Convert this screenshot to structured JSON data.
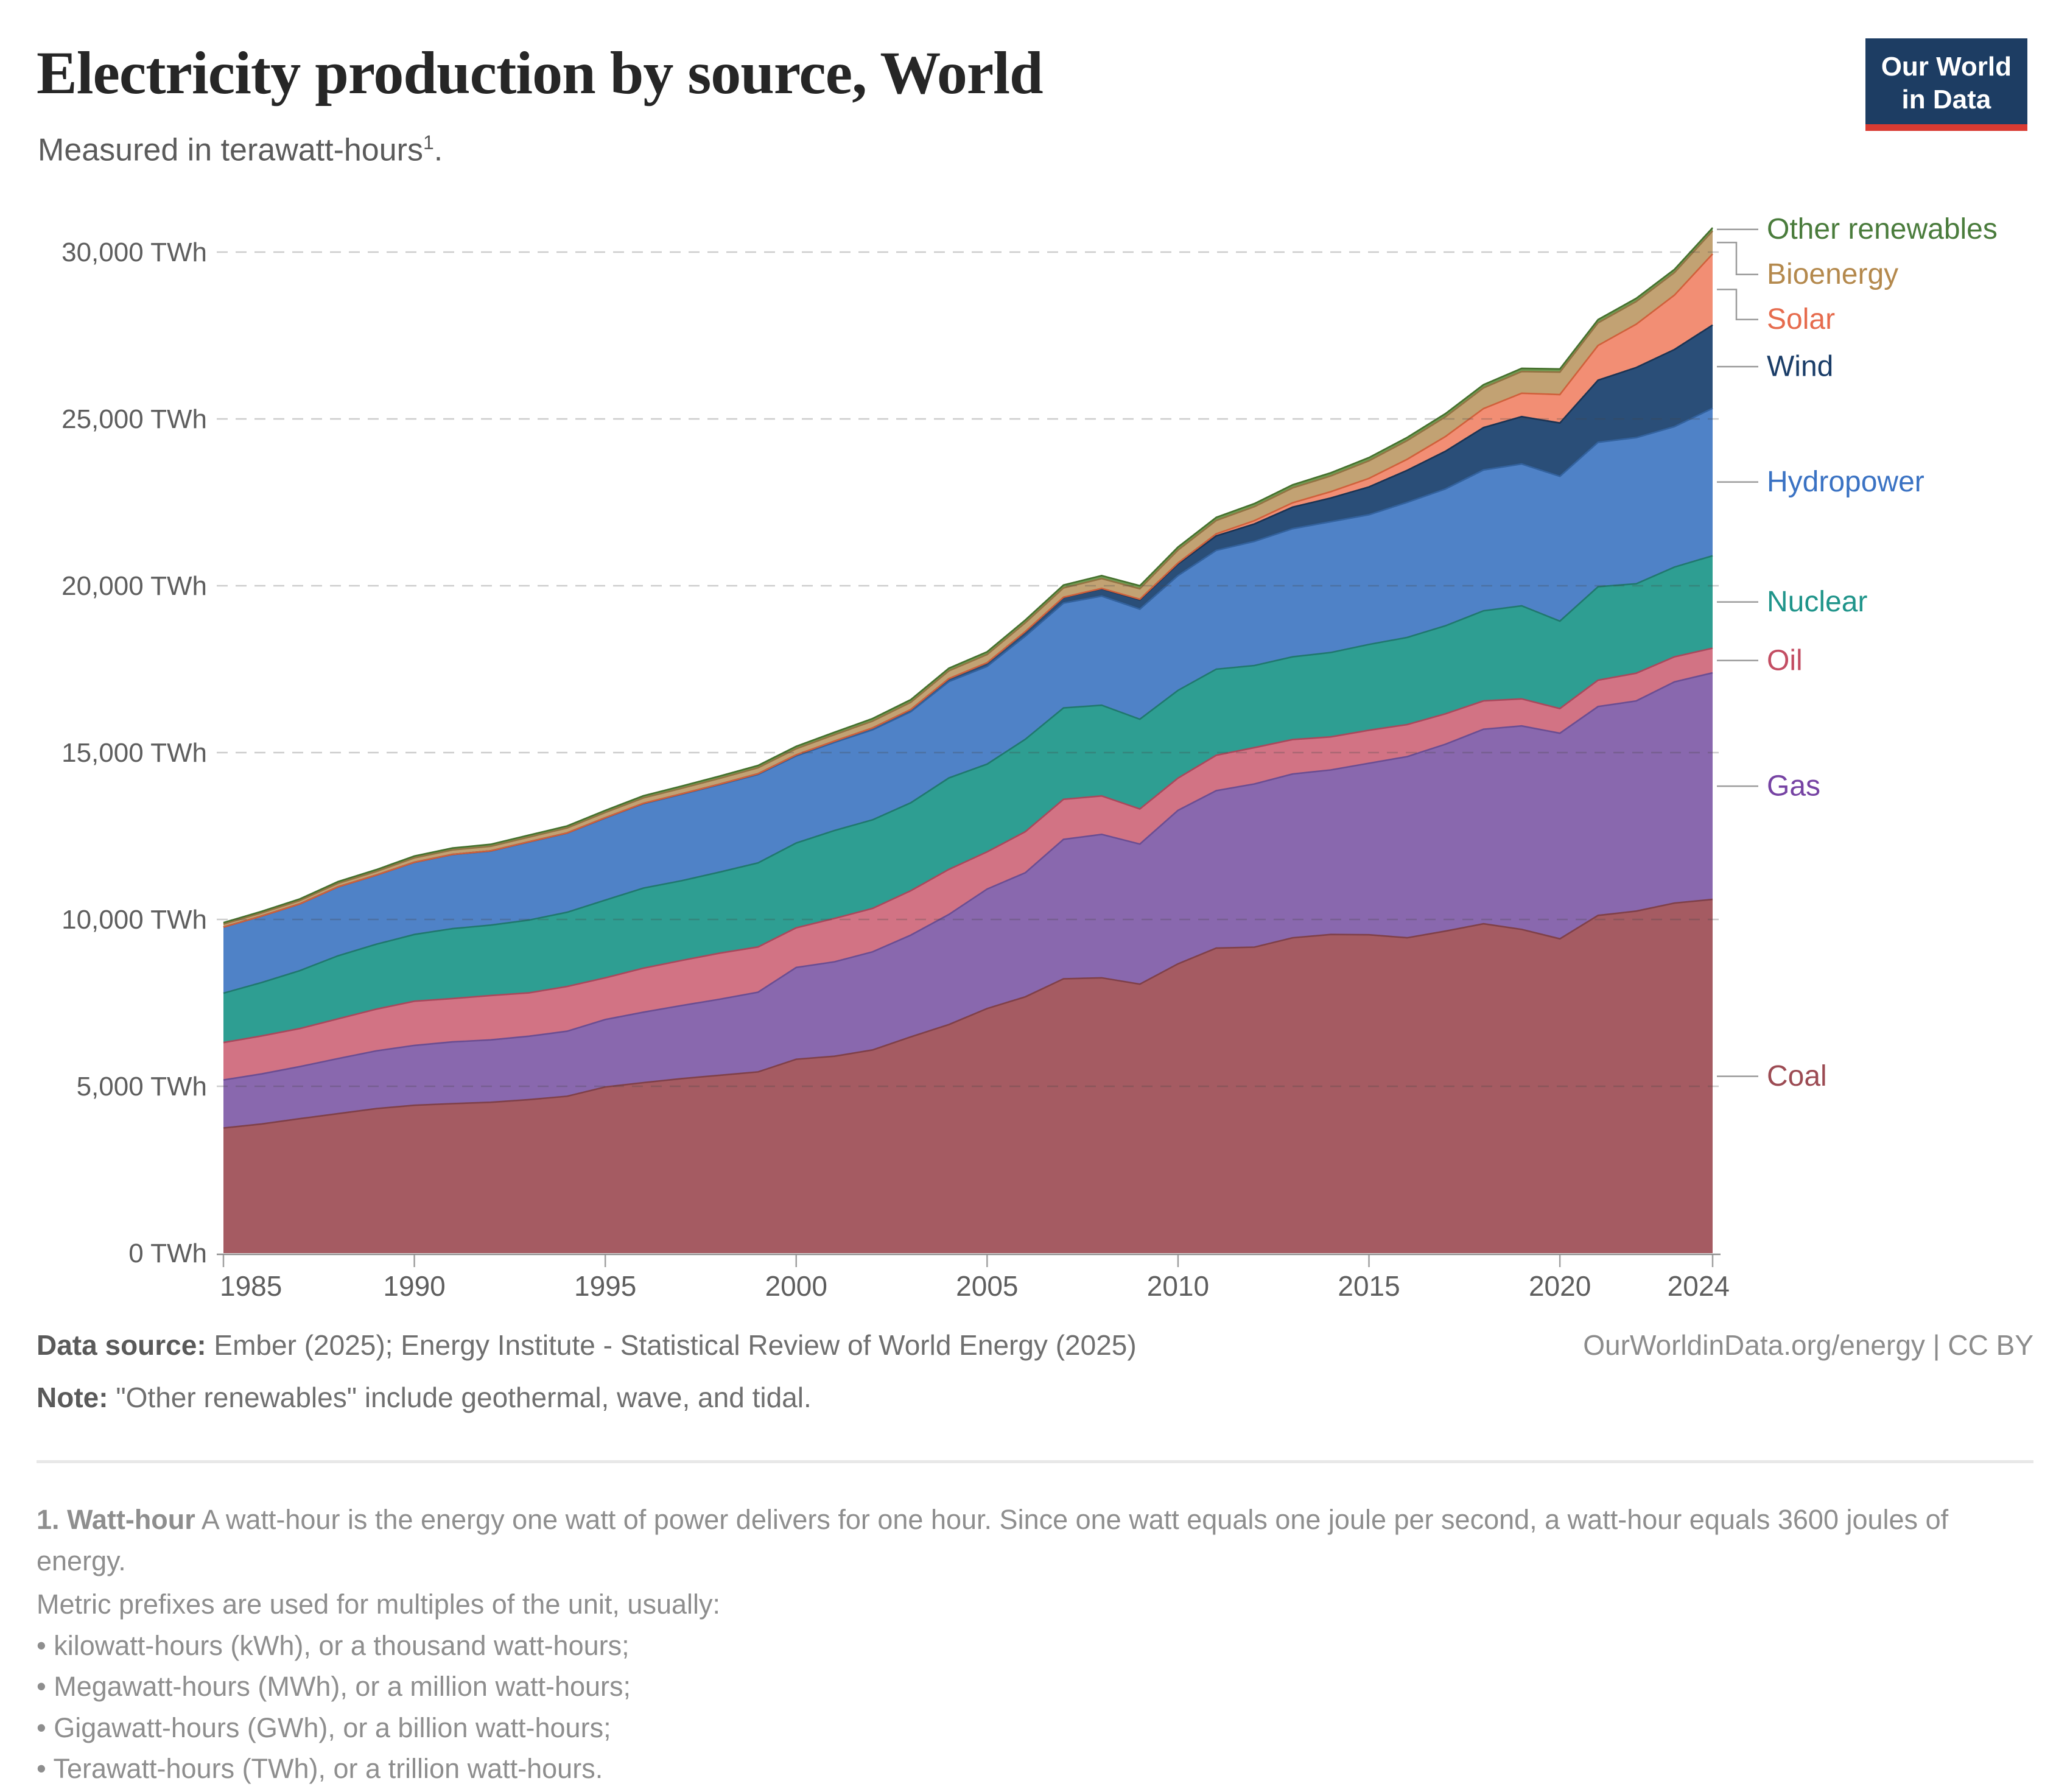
{
  "header": {
    "title": "Electricity production by source, World",
    "subtitle_pre": "Measured in terawatt-hours",
    "subtitle_sup": "1",
    "subtitle_post": ".",
    "logo": {
      "line1": "Our World",
      "line2": "in Data"
    }
  },
  "chart_data": {
    "type": "area",
    "stacked": true,
    "title": "Electricity production by source, World",
    "unit": "TWh",
    "xlabel": "",
    "ylabel": "",
    "ylim": [
      0,
      30000
    ],
    "grid": "dashed",
    "legend_position": "right",
    "x": [
      1985,
      1986,
      1987,
      1988,
      1989,
      1990,
      1991,
      1992,
      1993,
      1994,
      1995,
      1996,
      1997,
      1998,
      1999,
      2000,
      2001,
      2002,
      2003,
      2004,
      2005,
      2006,
      2007,
      2008,
      2009,
      2010,
      2011,
      2012,
      2013,
      2014,
      2015,
      2016,
      2017,
      2018,
      2019,
      2020,
      2021,
      2022,
      2023,
      2024
    ],
    "y_ticks": [
      {
        "value": 0,
        "label": "0 TWh"
      },
      {
        "value": 5000,
        "label": "5,000 TWh"
      },
      {
        "value": 10000,
        "label": "10,000 TWh"
      },
      {
        "value": 15000,
        "label": "15,000 TWh"
      },
      {
        "value": 20000,
        "label": "20,000 TWh"
      },
      {
        "value": 25000,
        "label": "25,000 TWh"
      },
      {
        "value": 30000,
        "label": "30,000 TWh"
      }
    ],
    "x_ticks": [
      {
        "value": 1985,
        "label": "1985"
      },
      {
        "value": 1990,
        "label": "1990"
      },
      {
        "value": 1995,
        "label": "1995"
      },
      {
        "value": 2000,
        "label": "2000"
      },
      {
        "value": 2005,
        "label": "2005"
      },
      {
        "value": 2010,
        "label": "2010"
      },
      {
        "value": 2015,
        "label": "2015"
      },
      {
        "value": 2020,
        "label": "2020"
      },
      {
        "value": 2024,
        "label": "2024"
      }
    ],
    "series": [
      {
        "name": "Coal",
        "fill": "#A55B62",
        "stroke": "#7F4049",
        "label_color": "#9C4B53",
        "values": [
          3750,
          3870,
          4030,
          4180,
          4330,
          4430,
          4480,
          4520,
          4600,
          4700,
          4980,
          5110,
          5230,
          5330,
          5430,
          5810,
          5900,
          6090,
          6480,
          6850,
          7330,
          7680,
          8220,
          8250,
          8060,
          8670,
          9140,
          9170,
          9450,
          9550,
          9540,
          9450,
          9650,
          9870,
          9700,
          9420,
          10120,
          10250,
          10490,
          10600
        ]
      },
      {
        "name": "Gas",
        "fill": "#8968AE",
        "stroke": "#6B4D92",
        "label_color": "#7643A3",
        "values": [
          1440,
          1500,
          1560,
          1650,
          1730,
          1795,
          1850,
          1870,
          1900,
          1950,
          2020,
          2110,
          2190,
          2280,
          2390,
          2750,
          2830,
          2940,
          3050,
          3300,
          3580,
          3720,
          4180,
          4300,
          4200,
          4600,
          4720,
          4890,
          4910,
          4930,
          5140,
          5430,
          5600,
          5830,
          6100,
          6160,
          6260,
          6300,
          6630,
          6790
        ]
      },
      {
        "name": "Oil",
        "fill": "#D27384",
        "stroke": "#A9485C",
        "label_color": "#C34E63",
        "values": [
          1120,
          1140,
          1140,
          1190,
          1250,
          1325,
          1300,
          1330,
          1300,
          1340,
          1250,
          1320,
          1350,
          1380,
          1355,
          1190,
          1300,
          1300,
          1330,
          1350,
          1115,
          1230,
          1200,
          1150,
          1050,
          965,
          1060,
          1090,
          1030,
          990,
          990,
          960,
          910,
          850,
          810,
          740,
          790,
          830,
          750,
          740
        ]
      },
      {
        "name": "Nuclear",
        "fill": "#2E9E92",
        "stroke": "#20786E",
        "label_color": "#1F948A",
        "values": [
          1480,
          1600,
          1735,
          1890,
          1945,
          2000,
          2095,
          2110,
          2180,
          2225,
          2330,
          2400,
          2390,
          2430,
          2520,
          2540,
          2635,
          2655,
          2635,
          2740,
          2630,
          2770,
          2740,
          2720,
          2690,
          2630,
          2580,
          2460,
          2480,
          2530,
          2570,
          2610,
          2640,
          2700,
          2790,
          2620,
          2800,
          2680,
          2690,
          2770
        ]
      },
      {
        "name": "Hydropower",
        "fill": "#4F82C7",
        "stroke": "#33629E",
        "label_color": "#3A72C3",
        "values": [
          1980,
          1990,
          2000,
          2065,
          2070,
          2160,
          2220,
          2220,
          2340,
          2370,
          2460,
          2530,
          2590,
          2620,
          2650,
          2610,
          2640,
          2700,
          2730,
          2890,
          2930,
          3090,
          3140,
          3270,
          3300,
          3440,
          3560,
          3720,
          3840,
          3920,
          3890,
          4050,
          4100,
          4220,
          4250,
          4340,
          4330,
          4380,
          4210,
          4420
        ]
      },
      {
        "name": "Wind",
        "fill": "#2A4E78",
        "stroke": "#1A3353",
        "label_color": "#1A3D68",
        "values": [
          0,
          0,
          0,
          1,
          1,
          4,
          4,
          5,
          6,
          7,
          8,
          9,
          12,
          16,
          21,
          31,
          38,
          52,
          63,
          85,
          104,
          133,
          170,
          219,
          276,
          346,
          434,
          523,
          645,
          710,
          831,
          960,
          1130,
          1270,
          1420,
          1597,
          1860,
          2100,
          2310,
          2494
        ]
      },
      {
        "name": "Solar",
        "fill": "#F28E74",
        "stroke": "#D0603B",
        "label_color": "#E66C4E",
        "values": [
          0,
          0,
          0,
          0,
          0,
          0,
          0,
          0,
          0,
          0,
          1,
          1,
          1,
          1,
          1,
          1,
          1,
          2,
          2,
          3,
          4,
          5,
          7,
          12,
          20,
          34,
          63,
          97,
          132,
          190,
          256,
          330,
          440,
          570,
          700,
          853,
          1040,
          1300,
          1629,
          2131
        ]
      },
      {
        "name": "Bioenergy",
        "fill": "#C2A273",
        "stroke": "#937343",
        "label_color": "#B4894D",
        "values": [
          89,
          95,
          100,
          105,
          110,
          131,
          135,
          138,
          142,
          148,
          157,
          162,
          168,
          172,
          178,
          184,
          192,
          205,
          218,
          232,
          247,
          262,
          278,
          295,
          315,
          385,
          400,
          420,
          445,
          470,
          528,
          560,
          590,
          620,
          650,
          672,
          680,
          678,
          678,
          688
        ]
      },
      {
        "name": "Other renewables",
        "fill": "#6F9B52",
        "stroke": "#45702D",
        "label_color": "#4A7C3C",
        "values": [
          46,
          48,
          50,
          52,
          54,
          55,
          56,
          58,
          60,
          62,
          63,
          64,
          66,
          68,
          70,
          72,
          74,
          76,
          78,
          80,
          82,
          84,
          86,
          88,
          90,
          91,
          92,
          93,
          94,
          95,
          96,
          96,
          97,
          97,
          97,
          97,
          97,
          97,
          95,
          97
        ]
      }
    ]
  },
  "footer": {
    "datasource_label": "Data source:",
    "datasource_text": " Ember (2025); Energy Institute - Statistical Review of World Energy (2025)",
    "rights": "OurWorldinData.org/energy | CC BY",
    "note_label": "Note:",
    "note_text": " \"Other renewables\" include geothermal, wave, and tidal."
  },
  "footnote": {
    "heading": "1. Watt-hour",
    "body": " A watt-hour is the energy one watt of power delivers for one hour. Since one watt equals one joule per second, a watt-hour equals 3600 joules of energy.",
    "intro2": "Metric prefixes are used for multiples of the unit, usually:",
    "bullets": [
      "• kilowatt-hours (kWh), or a thousand watt-hours;",
      "• Megawatt-hours (MWh), or a million watt-hours;",
      "• Gigawatt-hours (GWh), or a billion watt-hours;",
      "• Terawatt-hours (TWh), or a trillion watt-hours."
    ]
  }
}
